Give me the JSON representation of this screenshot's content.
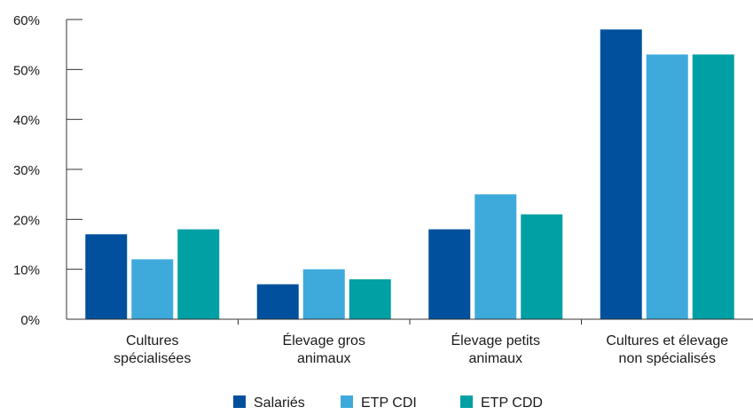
{
  "chart_data": {
    "type": "bar",
    "title": "",
    "xlabel": "",
    "ylabel": "",
    "ylim": [
      0,
      60
    ],
    "yticks": [
      "0%",
      "10%",
      "20%",
      "30%",
      "40%",
      "50%",
      "60%"
    ],
    "ytick_values": [
      0,
      10,
      20,
      30,
      40,
      50,
      60
    ],
    "categories": [
      [
        "Cultures",
        "spécialisées"
      ],
      [
        "Élevage gros",
        "animaux"
      ],
      [
        "Élevage petits",
        "animaux"
      ],
      [
        "Cultures et élevage",
        "non spécialisés"
      ]
    ],
    "series": [
      {
        "name": "Salariés",
        "color": "#00509d",
        "values": [
          17,
          7,
          18,
          58
        ]
      },
      {
        "name": "ETP CDI",
        "color": "#3eaadc",
        "values": [
          12,
          10,
          25,
          53
        ]
      },
      {
        "name": "ETP CDD",
        "color": "#00a0a5",
        "values": [
          18,
          8,
          21,
          53
        ]
      }
    ],
    "grid": false,
    "legend": "bottom-center"
  }
}
